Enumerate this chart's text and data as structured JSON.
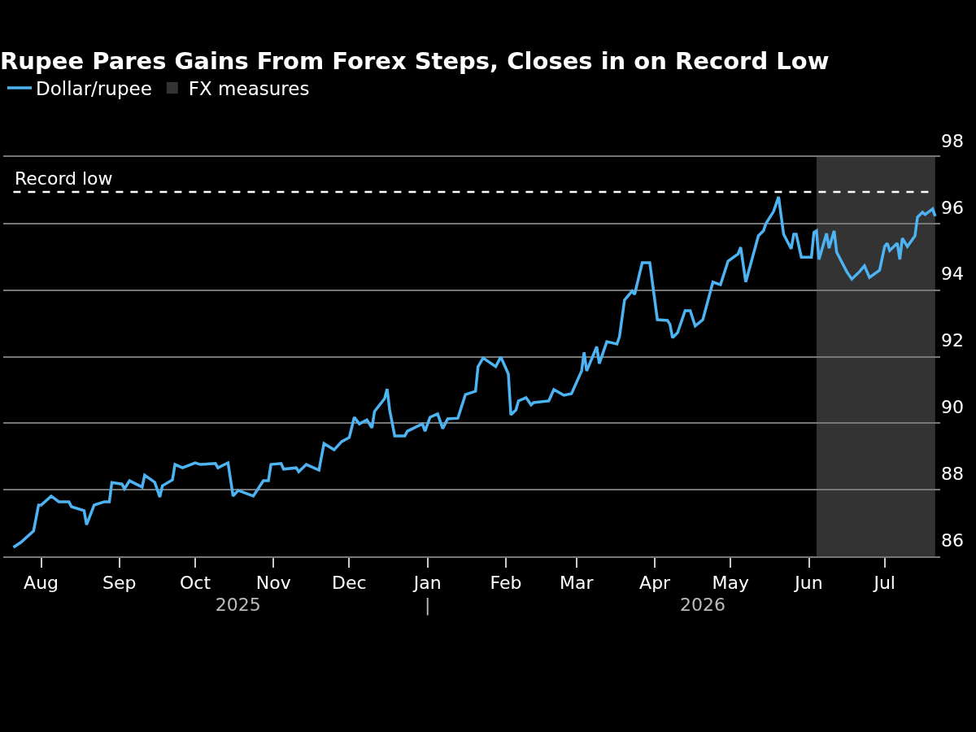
{
  "chart_data": {
    "type": "line",
    "title": "Rupee Pares Gains From Forex Steps, Closes in on Record Low",
    "x": [
      "2025-07-21",
      "2025-07-24",
      "2025-07-29",
      "2025-07-31",
      "2025-08-01",
      "2025-08-05",
      "2025-08-08",
      "2025-08-12",
      "2025-08-13",
      "2025-08-18",
      "2025-08-19",
      "2025-08-22",
      "2025-08-26",
      "2025-08-28",
      "2025-08-29",
      "2025-09-02",
      "2025-09-03",
      "2025-09-05",
      "2025-09-10",
      "2025-09-11",
      "2025-09-15",
      "2025-09-17",
      "2025-09-18",
      "2025-09-22",
      "2025-09-23",
      "2025-09-26",
      "2025-10-01",
      "2025-10-03",
      "2025-10-09",
      "2025-10-10",
      "2025-10-14",
      "2025-10-16",
      "2025-10-18",
      "2025-10-24",
      "2025-10-28",
      "2025-10-30",
      "2025-10-31",
      "2025-11-04",
      "2025-11-05",
      "2025-11-10",
      "2025-11-11",
      "2025-11-14",
      "2025-11-19",
      "2025-11-21",
      "2025-11-25",
      "2025-11-28",
      "2025-12-01",
      "2025-12-03",
      "2025-12-05",
      "2025-12-08",
      "2025-12-10",
      "2025-12-11",
      "2025-12-15",
      "2025-12-16",
      "2025-12-17",
      "2025-12-19",
      "2025-12-23",
      "2025-12-24",
      "2025-12-30",
      "2025-12-31",
      "2026-01-02",
      "2026-01-05",
      "2026-01-07",
      "2026-01-09",
      "2026-01-13",
      "2026-01-16",
      "2026-01-20",
      "2026-01-21",
      "2026-01-23",
      "2026-01-28",
      "2026-01-30",
      "2026-02-02",
      "2026-02-03",
      "2026-02-05",
      "2026-02-06",
      "2026-02-09",
      "2026-02-11",
      "2026-02-12",
      "2026-02-18",
      "2026-02-20",
      "2026-02-24",
      "2026-02-27",
      "2026-03-03",
      "2026-03-04",
      "2026-03-05",
      "2026-03-09",
      "2026-03-10",
      "2026-03-13",
      "2026-03-17",
      "2026-03-18",
      "2026-03-20",
      "2026-03-23",
      "2026-03-24",
      "2026-03-27",
      "2026-03-30",
      "2026-04-02",
      "2026-04-06",
      "2026-04-07",
      "2026-04-08",
      "2026-04-10",
      "2026-04-13",
      "2026-04-15",
      "2026-04-17",
      "2026-04-20",
      "2026-04-24",
      "2026-04-27",
      "2026-04-30",
      "2026-05-04",
      "2026-05-05",
      "2026-05-07",
      "2026-05-12",
      "2026-05-14",
      "2026-05-15",
      "2026-05-18",
      "2026-05-20",
      "2026-05-22",
      "2026-05-25",
      "2026-05-26",
      "2026-05-27",
      "2026-05-29",
      "2026-06-02",
      "2026-06-03",
      "2026-06-04",
      "2026-06-05",
      "2026-06-08",
      "2026-06-09",
      "2026-06-11",
      "2026-06-12",
      "2026-06-16",
      "2026-06-18",
      "2026-06-21",
      "2026-06-23",
      "2026-06-25",
      "2026-06-29",
      "2026-07-01",
      "2026-07-02",
      "2026-07-03",
      "2026-07-06",
      "2026-07-07",
      "2026-07-08",
      "2026-07-10",
      "2026-07-13",
      "2026-07-14",
      "2026-07-16",
      "2026-07-17",
      "2026-07-20",
      "2026-07-21"
    ],
    "series": [
      {
        "name": "Dollar/rupee",
        "color": "#4db3f2",
        "values": [
          86.27,
          86.42,
          86.76,
          87.54,
          87.54,
          87.81,
          87.64,
          87.64,
          87.49,
          87.37,
          86.95,
          87.54,
          87.64,
          87.64,
          88.22,
          88.17,
          88.03,
          88.27,
          88.08,
          88.44,
          88.22,
          87.78,
          88.12,
          88.3,
          88.76,
          88.66,
          88.81,
          88.76,
          88.79,
          88.66,
          88.81,
          87.81,
          87.98,
          87.81,
          88.27,
          88.27,
          88.76,
          88.79,
          88.62,
          88.66,
          88.54,
          88.76,
          88.59,
          89.39,
          89.2,
          89.45,
          89.57,
          90.18,
          89.98,
          90.1,
          89.86,
          90.35,
          90.74,
          91.03,
          90.4,
          89.62,
          89.62,
          89.76,
          89.98,
          89.76,
          90.18,
          90.28,
          89.84,
          90.13,
          90.15,
          90.86,
          90.96,
          91.7,
          91.96,
          91.7,
          91.99,
          91.48,
          90.25,
          90.4,
          90.67,
          90.77,
          90.55,
          90.62,
          90.67,
          91.01,
          90.84,
          90.89,
          91.57,
          92.13,
          91.57,
          92.3,
          91.79,
          92.45,
          92.38,
          92.6,
          93.7,
          93.97,
          93.87,
          94.82,
          94.82,
          93.11,
          93.09,
          92.97,
          92.57,
          92.72,
          93.38,
          93.38,
          92.92,
          93.11,
          94.24,
          94.16,
          94.87,
          95.09,
          95.29,
          94.24,
          95.63,
          95.78,
          96.0,
          96.36,
          96.8,
          95.68,
          95.24,
          95.68,
          95.68,
          94.99,
          94.99,
          95.73,
          95.78,
          94.92,
          95.7,
          95.26,
          95.78,
          95.14,
          94.55,
          94.33,
          94.55,
          94.73,
          94.38,
          94.6,
          95.31,
          95.41,
          95.19,
          95.41,
          94.92,
          95.56,
          95.31,
          95.63,
          96.19,
          96.34,
          96.27,
          96.44,
          96.22
        ]
      }
    ],
    "xlim": [
      "2025-07-17",
      "2026-07-23"
    ],
    "xticks": [
      {
        "value": "2025-08-01",
        "label": "Aug"
      },
      {
        "value": "2025-09-01",
        "label": "Sep"
      },
      {
        "value": "2025-10-01",
        "label": "Oct"
      },
      {
        "value": "2025-11-01",
        "label": "Nov"
      },
      {
        "value": "2025-12-01",
        "label": "Dec"
      },
      {
        "value": "2026-01-01",
        "label": "Jan"
      },
      {
        "value": "2026-02-01",
        "label": "Feb"
      },
      {
        "value": "2026-03-01",
        "label": "Mar"
      },
      {
        "value": "2026-04-01",
        "label": "Apr"
      },
      {
        "value": "2026-05-01",
        "label": "May"
      },
      {
        "value": "2026-06-01",
        "label": "Jun"
      },
      {
        "value": "2026-07-01",
        "label": "Jul"
      }
    ],
    "ylim": [
      86,
      98
    ],
    "yticks": [
      86,
      88,
      90,
      92,
      94,
      96,
      98
    ],
    "ref_lines": [
      {
        "axis": "y",
        "value": 96.95,
        "label": "Record low",
        "color": "#ffffff",
        "line_style": "dashed"
      }
    ],
    "bands": [
      {
        "axis": "x",
        "from": "2026-06-04",
        "to": "2026-07-21",
        "label": "FX measures",
        "color": "#333333"
      }
    ],
    "x2lim": [
      "2025-07-17",
      "2026-07-23"
    ],
    "x2ticks": [
      {
        "value": "2025-10-18",
        "label": "2025"
      },
      {
        "value": "2026-01-01",
        "label": "|"
      },
      {
        "value": "2026-04-20",
        "label": "2026"
      }
    ],
    "grid": "y",
    "legend": "top left",
    "marker": "none",
    "line_style": "solid"
  }
}
